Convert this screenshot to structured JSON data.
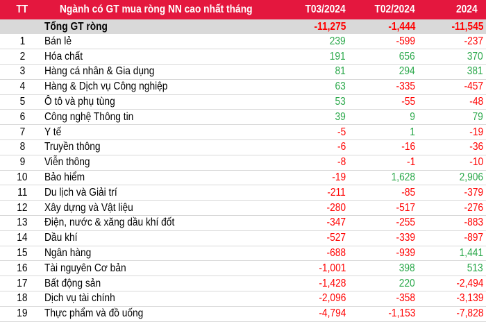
{
  "header": {
    "tt": "TT",
    "sector": "Ngành có GT mua ròng NN cao nhất tháng",
    "col1": "T03/2024",
    "col2": "T02/2024",
    "col3": "2024"
  },
  "total": {
    "label": "Tổng GT ròng",
    "v1": "-11,275",
    "v2": "-1,444",
    "v3": "-11,545"
  },
  "colors": {
    "header_bg": "#e4173e",
    "positive": "#2aa84a",
    "negative": "#ff0000",
    "total_bg": "#d9d9d9"
  },
  "rows": [
    {
      "tt": "1",
      "name": "Bán lẻ",
      "v1": "239",
      "v2": "-599",
      "v3": "-237"
    },
    {
      "tt": "2",
      "name": "Hóa chất",
      "v1": "191",
      "v2": "656",
      "v3": "370"
    },
    {
      "tt": "3",
      "name": "Hàng cá nhân & Gia dụng",
      "v1": "81",
      "v2": "294",
      "v3": "381"
    },
    {
      "tt": "4",
      "name": "Hàng & Dịch vụ Công nghiệp",
      "v1": "63",
      "v2": "-335",
      "v3": "-457"
    },
    {
      "tt": "5",
      "name": "Ô tô và phụ tùng",
      "v1": "53",
      "v2": "-55",
      "v3": "-48"
    },
    {
      "tt": "6",
      "name": "Công nghệ Thông tin",
      "v1": "39",
      "v2": "9",
      "v3": "79"
    },
    {
      "tt": "7",
      "name": "Y tế",
      "v1": "-5",
      "v2": "1",
      "v3": "-19"
    },
    {
      "tt": "8",
      "name": "Truyền thông",
      "v1": "-6",
      "v2": "-16",
      "v3": "-36"
    },
    {
      "tt": "9",
      "name": "Viễn thông",
      "v1": "-8",
      "v2": "-1",
      "v3": "-10"
    },
    {
      "tt": "10",
      "name": "Bảo hiểm",
      "v1": "-19",
      "v2": "1,628",
      "v3": "2,906"
    },
    {
      "tt": "11",
      "name": "Du lịch và Giải trí",
      "v1": "-211",
      "v2": "-85",
      "v3": "-379"
    },
    {
      "tt": "12",
      "name": "Xây dựng và Vật liệu",
      "v1": "-280",
      "v2": "-517",
      "v3": "-276"
    },
    {
      "tt": "13",
      "name": "Điện, nước & xăng dầu khí đốt",
      "v1": "-347",
      "v2": "-255",
      "v3": "-883"
    },
    {
      "tt": "14",
      "name": "Dầu khí",
      "v1": "-527",
      "v2": "-339",
      "v3": "-897"
    },
    {
      "tt": "15",
      "name": "Ngân hàng",
      "v1": "-688",
      "v2": "-939",
      "v3": "1,441"
    },
    {
      "tt": "16",
      "name": "Tài nguyên Cơ bản",
      "v1": "-1,001",
      "v2": "398",
      "v3": "513"
    },
    {
      "tt": "17",
      "name": "Bất động sản",
      "v1": "-1,428",
      "v2": "220",
      "v3": "-2,494"
    },
    {
      "tt": "18",
      "name": "Dịch vụ tài chính",
      "v1": "-2,096",
      "v2": "-358",
      "v3": "-3,139"
    },
    {
      "tt": "19",
      "name": "Thực phẩm và đồ uống",
      "v1": "-4,794",
      "v2": "-1,153",
      "v3": "-7,828"
    }
  ]
}
